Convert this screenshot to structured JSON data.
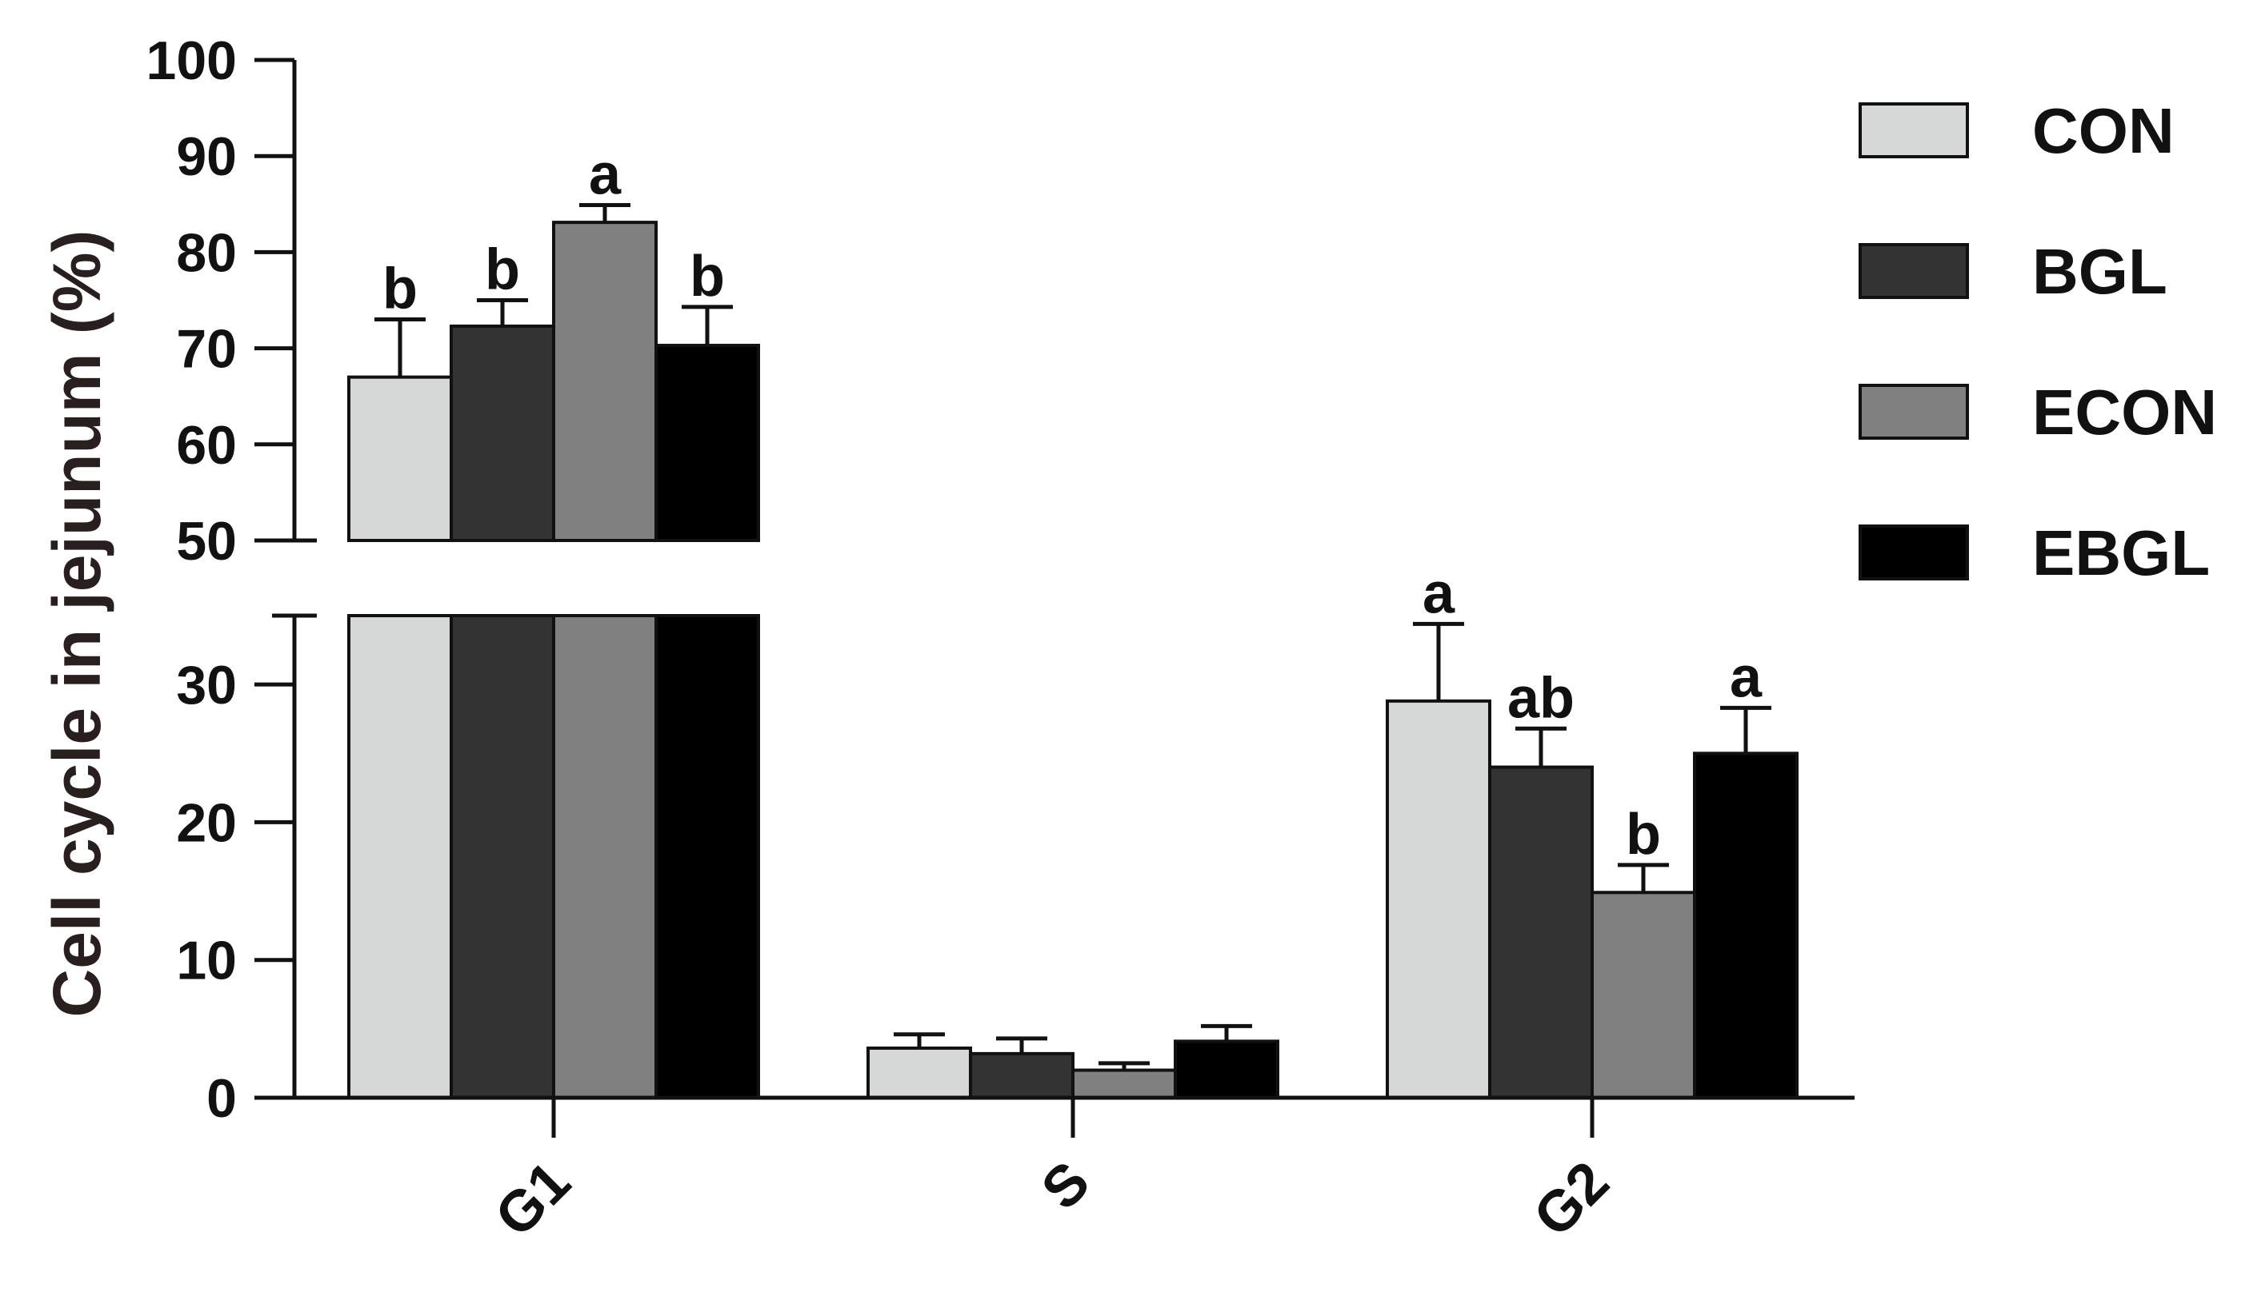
{
  "chart_data": {
    "type": "bar",
    "title": "",
    "xlabel": "",
    "ylabel": "Cell cycle in jejunum (%)",
    "categories": [
      "G1",
      "S",
      "G2"
    ],
    "series": [
      {
        "name": "CON",
        "color": "#d6d8d7",
        "values": [
          67.0,
          3.6,
          28.8
        ],
        "errors": [
          6.0,
          1.0,
          5.6
        ],
        "labels": [
          "b",
          "",
          "a"
        ]
      },
      {
        "name": "BGL",
        "color": "#333333",
        "values": [
          72.3,
          3.2,
          24.0
        ],
        "errors": [
          2.7,
          1.1,
          2.8
        ],
        "labels": [
          "b",
          "",
          "ab"
        ]
      },
      {
        "name": "ECON",
        "color": "#808080",
        "values": [
          83.1,
          2.0,
          14.9
        ],
        "errors": [
          1.8,
          0.5,
          2.0
        ],
        "labels": [
          "a",
          "",
          "b"
        ]
      },
      {
        "name": "EBGL",
        "color": "#000000",
        "values": [
          70.3,
          4.1,
          25.0
        ],
        "errors": [
          4.0,
          1.1,
          3.3
        ],
        "labels": [
          "b",
          "",
          "a"
        ]
      }
    ],
    "axis": {
      "broken": true,
      "lower_range": [
        0,
        35
      ],
      "upper_range": [
        50,
        100
      ],
      "lower_ticks": [
        "0",
        "10",
        "20",
        "30"
      ],
      "upper_ticks": [
        "50",
        "60",
        "70",
        "80",
        "90",
        "100"
      ]
    },
    "legend": {
      "position": "right",
      "entries": [
        "CON",
        "BGL",
        "ECON",
        "EBGL"
      ]
    },
    "grid": false,
    "x_tick_rotation": "45 degrees"
  }
}
